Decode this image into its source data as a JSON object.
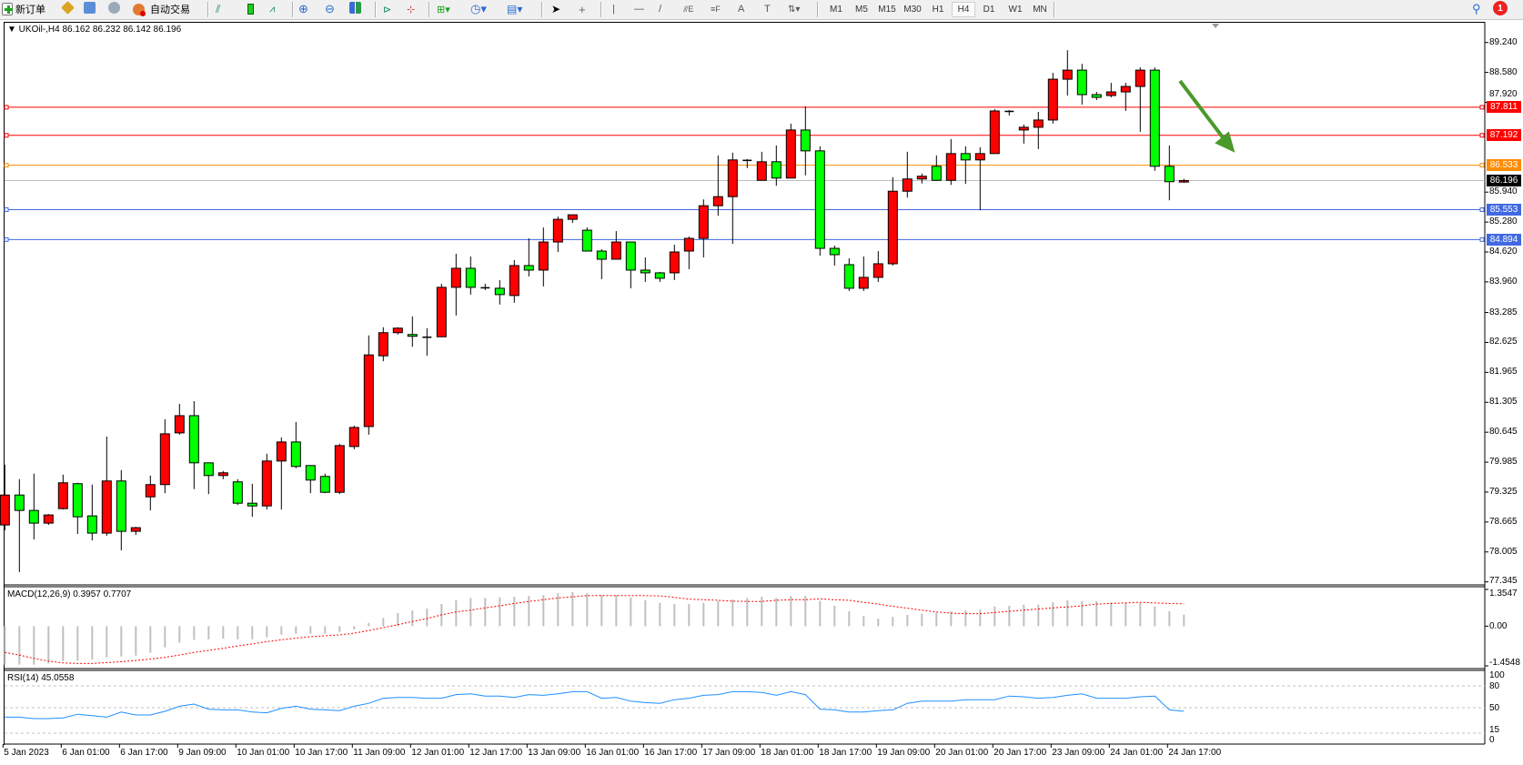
{
  "toolbar": {
    "new_order_label": "新订单",
    "auto_trading_label": "自动交易",
    "timeframes": [
      "M1",
      "M5",
      "M15",
      "M30",
      "H1",
      "H4",
      "D1",
      "W1",
      "MN"
    ],
    "selected_timeframe": "H4",
    "notification_count": "1",
    "icons": [
      "new-order-icon",
      "history-icon",
      "market-watch-icon",
      "signals-icon",
      "auto-trading-icon",
      "bar-chart-icon",
      "candlestick-icon",
      "line-chart-icon",
      "zoom-in-icon",
      "zoom-out-icon",
      "tile-windows-icon",
      "auto-scroll-icon",
      "chart-shift-icon",
      "indicators-icon",
      "periods-icon",
      "templates-icon",
      "cursor-icon",
      "crosshair-icon",
      "vertical-line-icon",
      "horizontal-line-icon",
      "trendline-icon",
      "fibonacci-icon",
      "fibo-fan-icon",
      "text-icon",
      "text-label-icon",
      "arrows-icon",
      "search-icon",
      "notification-icon"
    ]
  },
  "chart": {
    "header": "▼ UKOil-,H4  86.162 86.232 86.142 86.196",
    "price_ticks": [
      "89.240",
      "88.580",
      "87.920",
      "85.940",
      "85.280",
      "84.620",
      "83.960",
      "83.285",
      "82.625",
      "81.965",
      "81.305",
      "80.645",
      "79.985",
      "79.325",
      "78.665",
      "78.005",
      "77.345"
    ],
    "levels": [
      {
        "price": "87.811",
        "color": "#ff0000"
      },
      {
        "price": "87.192",
        "color": "#ff0000"
      },
      {
        "price": "86.533",
        "color": "#ff8c00"
      },
      {
        "price": "85.553",
        "color": "#4169e1"
      },
      {
        "price": "84.894",
        "color": "#4169e1"
      }
    ],
    "bid": {
      "price": "86.196",
      "color": "#000000",
      "line_color": "#c0c0c0"
    },
    "arrow_color": "#4a9a2a",
    "colors": {
      "up": "#ff0000",
      "down": "#00ff00",
      "outline": "#000000"
    },
    "date_labels": [
      {
        "bar": 0,
        "text": "5 Jan 2023"
      },
      {
        "bar": 4,
        "text": "6 Jan 01:00"
      },
      {
        "bar": 8,
        "text": "6 Jan 17:00"
      },
      {
        "bar": 12,
        "text": "9 Jan 09:00"
      },
      {
        "bar": 16,
        "text": "10 Jan 01:00"
      },
      {
        "bar": 20,
        "text": "10 Jan 17:00"
      },
      {
        "bar": 24,
        "text": "11 Jan 09:00"
      },
      {
        "bar": 28,
        "text": "12 Jan 01:00"
      },
      {
        "bar": 32,
        "text": "12 Jan 17:00"
      },
      {
        "bar": 36,
        "text": "13 Jan 09:00"
      },
      {
        "bar": 40,
        "text": "16 Jan 01:00"
      },
      {
        "bar": 44,
        "text": "16 Jan 17:00"
      },
      {
        "bar": 48,
        "text": "17 Jan 09:00"
      },
      {
        "bar": 52,
        "text": "18 Jan 01:00"
      },
      {
        "bar": 56,
        "text": "18 Jan 17:00"
      },
      {
        "bar": 60,
        "text": "19 Jan 09:00"
      },
      {
        "bar": 64,
        "text": "20 Jan 01:00"
      },
      {
        "bar": 68,
        "text": "20 Jan 17:00"
      },
      {
        "bar": 72,
        "text": "23 Jan 09:00"
      },
      {
        "bar": 76,
        "text": "24 Jan 01:00"
      },
      {
        "bar": 80,
        "text": "24 Jan 17:00"
      }
    ]
  },
  "macd": {
    "label": "MACD(12,26,9) 0.3957 0.7707",
    "ticks": [
      "1.3547",
      "0.00",
      "-1.4548"
    ],
    "hist_color": "#c0c0c0",
    "signal_color": "#ff0000"
  },
  "rsi": {
    "label": "RSI(14) 45.0558",
    "ticks": [
      "100",
      "80",
      "50",
      "15",
      "0"
    ],
    "line_color": "#1e90ff"
  },
  "chart_data": {
    "type": "candlestick",
    "symbol": "UKOil-",
    "timeframe": "H4",
    "ylim": [
      77.345,
      89.24
    ],
    "grid": false,
    "x": [
      "5 Jan 09:00",
      "5 Jan 13:00",
      "5 Jan 17:00",
      "5 Jan 21:00",
      "6 Jan 01:00",
      "6 Jan 05:00",
      "6 Jan 09:00",
      "6 Jan 13:00",
      "6 Jan 17:00",
      "6 Jan 21:00",
      "9 Jan 01:00",
      "9 Jan 05:00",
      "9 Jan 09:00",
      "9 Jan 13:00",
      "9 Jan 17:00",
      "9 Jan 21:00",
      "10 Jan 01:00",
      "10 Jan 05:00",
      "10 Jan 09:00",
      "10 Jan 13:00",
      "10 Jan 17:00",
      "10 Jan 21:00",
      "11 Jan 01:00",
      "11 Jan 05:00",
      "11 Jan 09:00",
      "11 Jan 13:00",
      "11 Jan 17:00",
      "11 Jan 21:00",
      "12 Jan 01:00",
      "12 Jan 05:00",
      "12 Jan 09:00",
      "12 Jan 13:00",
      "12 Jan 17:00",
      "12 Jan 21:00",
      "13 Jan 01:00",
      "13 Jan 05:00",
      "13 Jan 09:00",
      "13 Jan 13:00",
      "13 Jan 17:00",
      "13 Jan 21:00",
      "16 Jan 01:00",
      "16 Jan 05:00",
      "16 Jan 09:00",
      "16 Jan 13:00",
      "16 Jan 17:00",
      "16 Jan 21:00",
      "17 Jan 01:00",
      "17 Jan 05:00",
      "17 Jan 09:00",
      "17 Jan 13:00",
      "17 Jan 17:00",
      "17 Jan 21:00",
      "18 Jan 01:00",
      "18 Jan 05:00",
      "18 Jan 09:00",
      "18 Jan 13:00",
      "18 Jan 17:00",
      "18 Jan 21:00",
      "19 Jan 01:00",
      "19 Jan 05:00",
      "19 Jan 09:00",
      "19 Jan 13:00",
      "19 Jan 17:00",
      "19 Jan 21:00",
      "20 Jan 01:00",
      "20 Jan 05:00",
      "20 Jan 09:00",
      "20 Jan 13:00",
      "20 Jan 17:00",
      "20 Jan 21:00",
      "23 Jan 01:00",
      "23 Jan 05:00",
      "23 Jan 09:00",
      "23 Jan 13:00",
      "23 Jan 17:00",
      "23 Jan 21:00",
      "24 Jan 01:00",
      "24 Jan 05:00",
      "24 Jan 09:00",
      "24 Jan 13:00",
      "24 Jan 17:00",
      "24 Jan 21:00"
    ],
    "ohlc": [
      [
        78.6,
        79.93,
        78.48,
        79.26
      ],
      [
        79.26,
        79.61,
        77.56,
        78.92
      ],
      [
        78.92,
        79.73,
        78.28,
        78.64
      ],
      [
        78.64,
        78.84,
        78.6,
        78.82
      ],
      [
        78.96,
        79.71,
        78.94,
        79.53
      ],
      [
        79.51,
        79.53,
        78.4,
        78.78
      ],
      [
        78.8,
        79.49,
        78.26,
        78.42
      ],
      [
        78.42,
        80.55,
        78.36,
        79.57
      ],
      [
        79.57,
        79.81,
        78.04,
        78.46
      ],
      [
        78.46,
        78.56,
        78.38,
        78.54
      ],
      [
        79.22,
        79.69,
        78.92,
        79.49
      ],
      [
        79.49,
        80.93,
        79.3,
        80.61
      ],
      [
        80.63,
        81.27,
        80.59,
        81.01
      ],
      [
        81.01,
        81.33,
        79.39,
        79.97
      ],
      [
        79.97,
        79.97,
        79.28,
        79.69
      ],
      [
        79.69,
        79.79,
        79.61,
        79.75
      ],
      [
        79.55,
        79.61,
        79.04,
        79.08
      ],
      [
        79.08,
        79.51,
        78.78,
        79.02
      ],
      [
        79.02,
        80.17,
        78.94,
        80.01
      ],
      [
        80.01,
        80.53,
        78.94,
        80.43
      ],
      [
        80.43,
        80.87,
        79.85,
        79.89
      ],
      [
        79.91,
        79.91,
        79.3,
        79.59
      ],
      [
        79.67,
        79.73,
        79.3,
        79.32
      ],
      [
        79.32,
        80.39,
        79.28,
        80.35
      ],
      [
        80.33,
        80.79,
        80.27,
        80.75
      ],
      [
        80.77,
        82.78,
        80.59,
        82.35
      ],
      [
        82.33,
        82.96,
        82.21,
        82.84
      ],
      [
        82.84,
        82.96,
        82.8,
        82.94
      ],
      [
        82.8,
        83.2,
        82.53,
        82.76
      ],
      [
        82.74,
        82.94,
        82.33,
        82.73
      ],
      [
        82.75,
        83.92,
        82.75,
        83.84
      ],
      [
        83.84,
        84.58,
        83.22,
        84.26
      ],
      [
        84.26,
        84.52,
        83.68,
        83.84
      ],
      [
        83.83,
        83.92,
        83.78,
        83.82
      ],
      [
        83.82,
        84.0,
        83.46,
        83.68
      ],
      [
        83.66,
        84.44,
        83.5,
        84.32
      ],
      [
        84.32,
        84.92,
        84.08,
        84.22
      ],
      [
        84.22,
        85.16,
        83.86,
        84.84
      ],
      [
        84.84,
        85.4,
        84.62,
        85.34
      ],
      [
        85.34,
        85.44,
        85.26,
        85.44
      ],
      [
        85.1,
        85.16,
        84.64,
        84.64
      ],
      [
        84.64,
        84.68,
        84.02,
        84.46
      ],
      [
        84.46,
        85.08,
        84.46,
        84.84
      ],
      [
        84.84,
        84.84,
        83.82,
        84.22
      ],
      [
        84.22,
        84.5,
        83.96,
        84.16
      ],
      [
        84.16,
        84.18,
        83.96,
        84.04
      ],
      [
        84.16,
        84.78,
        84.0,
        84.62
      ],
      [
        84.64,
        84.96,
        84.24,
        84.92
      ],
      [
        84.92,
        85.78,
        84.5,
        85.64
      ],
      [
        85.64,
        86.75,
        85.42,
        85.84
      ],
      [
        85.84,
        86.81,
        84.8,
        86.65
      ],
      [
        86.63,
        86.67,
        86.47,
        86.64
      ],
      [
        86.2,
        86.83,
        86.2,
        86.61
      ],
      [
        86.61,
        86.97,
        86.08,
        86.25
      ],
      [
        86.25,
        87.45,
        86.25,
        87.31
      ],
      [
        87.31,
        87.83,
        86.31,
        86.85
      ],
      [
        86.85,
        86.95,
        84.54,
        84.7
      ],
      [
        84.7,
        84.76,
        84.32,
        84.56
      ],
      [
        84.34,
        84.48,
        83.76,
        83.82
      ],
      [
        83.82,
        84.52,
        83.76,
        84.06
      ],
      [
        84.06,
        84.64,
        83.96,
        84.36
      ],
      [
        84.36,
        86.27,
        84.32,
        85.96
      ],
      [
        85.96,
        86.83,
        85.82,
        86.23
      ],
      [
        86.23,
        86.35,
        86.13,
        86.29
      ],
      [
        86.51,
        86.75,
        86.2,
        86.2
      ],
      [
        86.2,
        87.11,
        86.1,
        86.79
      ],
      [
        86.79,
        86.95,
        86.12,
        86.65
      ],
      [
        86.65,
        86.93,
        85.54,
        86.79
      ],
      [
        86.79,
        87.77,
        86.79,
        87.73
      ],
      [
        87.71,
        87.75,
        87.63,
        87.72
      ],
      [
        87.31,
        87.43,
        87.01,
        87.37
      ],
      [
        87.37,
        87.71,
        86.89,
        87.53
      ],
      [
        87.53,
        88.57,
        87.45,
        88.43
      ],
      [
        88.43,
        89.07,
        88.07,
        88.63
      ],
      [
        88.63,
        88.77,
        87.87,
        88.09
      ],
      [
        88.09,
        88.15,
        87.97,
        88.03
      ],
      [
        88.07,
        88.35,
        88.03,
        88.15
      ],
      [
        88.15,
        88.35,
        87.73,
        88.27
      ],
      [
        88.27,
        88.69,
        87.27,
        88.63
      ],
      [
        88.63,
        88.69,
        86.41,
        86.51
      ],
      [
        86.51,
        86.97,
        85.76,
        86.17
      ],
      [
        86.162,
        86.232,
        86.142,
        86.196
      ]
    ],
    "macd": {
      "ylim": [
        -1.4548,
        1.3547
      ],
      "histogram": [
        -1.32,
        -1.32,
        -1.32,
        -1.28,
        -1.2,
        -1.18,
        -1.14,
        -1.07,
        -1.04,
        -1.01,
        -0.91,
        -0.73,
        -0.57,
        -0.47,
        -0.45,
        -0.43,
        -0.45,
        -0.45,
        -0.38,
        -0.29,
        -0.26,
        -0.26,
        -0.26,
        -0.2,
        -0.11,
        0.11,
        0.28,
        0.45,
        0.54,
        0.61,
        0.76,
        0.89,
        0.97,
        0.97,
        0.99,
        1.01,
        1.04,
        1.07,
        1.13,
        1.17,
        1.13,
        1.07,
        1.07,
        0.99,
        0.89,
        0.8,
        0.76,
        0.76,
        0.8,
        0.87,
        0.92,
        0.97,
        1.01,
        0.97,
        1.04,
        1.04,
        0.87,
        0.7,
        0.51,
        0.35,
        0.26,
        0.32,
        0.39,
        0.43,
        0.47,
        0.51,
        0.54,
        0.57,
        0.68,
        0.7,
        0.74,
        0.74,
        0.82,
        0.89,
        0.87,
        0.86,
        0.82,
        0.8,
        0.8,
        0.68,
        0.51,
        0.3957
      ],
      "signal": [
        -0.9,
        -0.99,
        -1.11,
        -1.2,
        -1.26,
        -1.28,
        -1.28,
        -1.25,
        -1.22,
        -1.18,
        -1.13,
        -1.07,
        -0.99,
        -0.9,
        -0.83,
        -0.76,
        -0.68,
        -0.61,
        -0.53,
        -0.47,
        -0.41,
        -0.36,
        -0.33,
        -0.3,
        -0.24,
        -0.15,
        -0.05,
        0.05,
        0.16,
        0.26,
        0.39,
        0.49,
        0.55,
        0.63,
        0.7,
        0.78,
        0.85,
        0.91,
        0.97,
        1.01,
        1.05,
        1.05,
        1.05,
        1.05,
        1.05,
        1.04,
        0.99,
        0.93,
        0.91,
        0.89,
        0.86,
        0.85,
        0.85,
        0.89,
        0.91,
        0.91,
        0.94,
        0.91,
        0.89,
        0.82,
        0.76,
        0.68,
        0.62,
        0.55,
        0.49,
        0.45,
        0.43,
        0.43,
        0.47,
        0.51,
        0.55,
        0.59,
        0.63,
        0.66,
        0.7,
        0.76,
        0.78,
        0.8,
        0.82,
        0.8,
        0.78,
        0.7707
      ]
    },
    "rsi": {
      "ylim": [
        0,
        100
      ],
      "levels": [
        80,
        50,
        15
      ],
      "values": [
        37,
        37,
        35,
        35,
        36,
        41,
        39,
        37,
        44,
        40,
        40,
        45,
        52,
        55,
        48,
        47,
        47,
        44,
        43,
        49,
        52,
        48,
        47,
        46,
        52,
        56,
        63,
        64,
        64,
        63,
        63,
        68,
        69,
        66,
        66,
        64,
        68,
        67,
        69,
        72,
        72,
        63,
        64,
        59,
        57,
        56,
        61,
        63,
        67,
        68,
        72,
        72,
        71,
        67,
        72,
        68,
        48,
        47,
        44,
        44,
        46,
        47,
        56,
        59,
        59,
        59,
        61,
        61,
        61,
        66,
        65,
        63,
        64,
        67,
        69,
        63,
        63,
        63,
        65,
        66,
        47,
        45.0558
      ]
    }
  }
}
